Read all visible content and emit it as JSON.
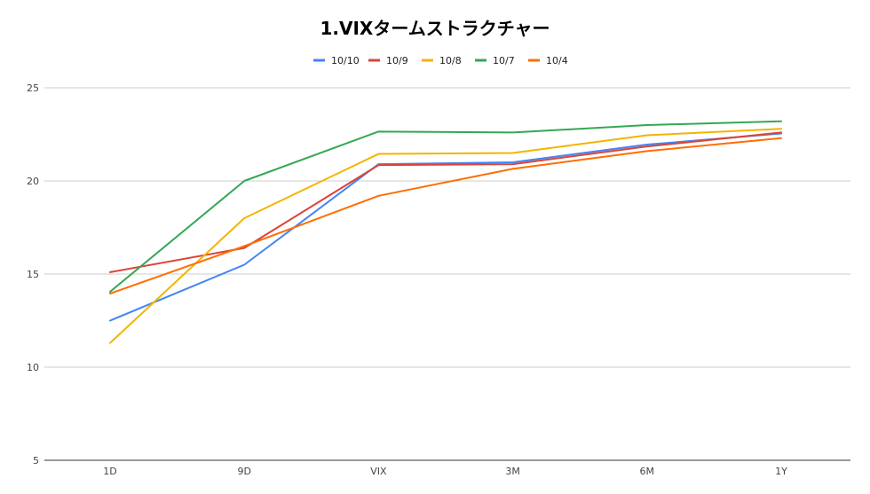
{
  "chart_data": {
    "type": "line",
    "title": "1.VIXタームストラクチャー",
    "xlabel": "",
    "ylabel": "",
    "categories": [
      "1D",
      "9D",
      "VIX",
      "3M",
      "6M",
      "1Y"
    ],
    "ylim": [
      5,
      25
    ],
    "yticks": [
      5,
      10,
      15,
      20,
      25
    ],
    "grid": true,
    "legend_position": "top",
    "series": [
      {
        "name": "10/10",
        "color": "#4285f4",
        "values": [
          12.5,
          15.5,
          20.9,
          21.0,
          21.95,
          22.55
        ]
      },
      {
        "name": "10/9",
        "color": "#db4437",
        "values": [
          15.1,
          16.4,
          20.85,
          20.9,
          21.85,
          22.6
        ]
      },
      {
        "name": "10/8",
        "color": "#f4b400",
        "values": [
          11.3,
          18.0,
          21.45,
          21.5,
          22.45,
          22.8
        ]
      },
      {
        "name": "10/7",
        "color": "#34a853",
        "values": [
          14.05,
          20.0,
          22.65,
          22.6,
          23.0,
          23.2
        ]
      },
      {
        "name": "10/4",
        "color": "#ff6d01",
        "values": [
          13.95,
          16.5,
          19.2,
          20.65,
          21.6,
          22.3
        ]
      }
    ]
  }
}
